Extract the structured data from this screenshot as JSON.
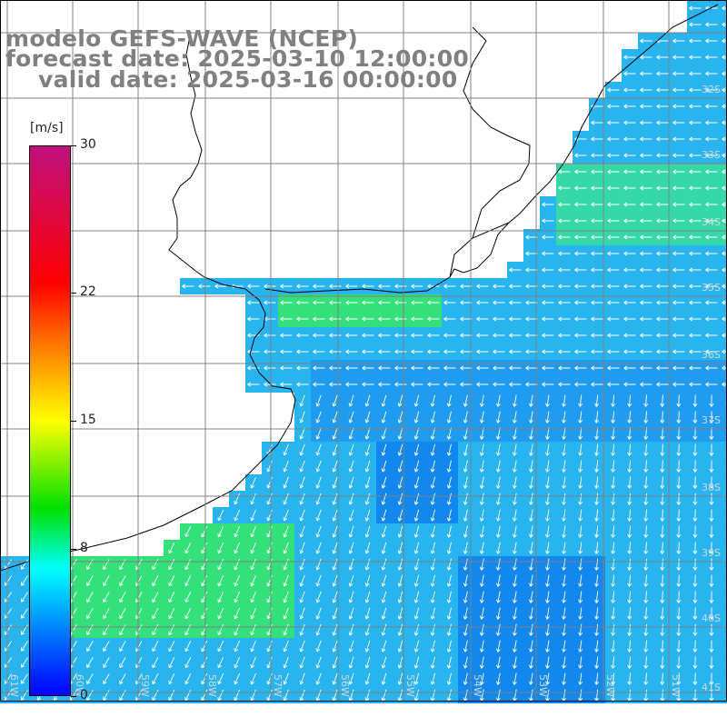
{
  "title": {
    "line1": "modelo GEFS-WAVE (NCEP)",
    "line2": "forecast date: 2025-03-10 12:00:00",
    "line3": "valid date: 2025-03-16 00:00:00"
  },
  "colorbar": {
    "units": "[m/s]",
    "ticks": [
      {
        "label": "30",
        "value": 30
      },
      {
        "label": "22",
        "value": 22
      },
      {
        "label": "15",
        "value": 15
      },
      {
        "label": "8",
        "value": 8
      },
      {
        "label": "0",
        "value": 0
      }
    ],
    "range": [
      0,
      30
    ],
    "colors": [
      "#0000ff",
      "#0080ff",
      "#00ffff",
      "#00e000",
      "#ffff00",
      "#ff8000",
      "#ff0000",
      "#c01080"
    ]
  },
  "map": {
    "lat_labels": [
      "32S",
      "33S",
      "34S",
      "35S",
      "36S",
      "37S",
      "38S",
      "39S",
      "40S",
      "41S"
    ],
    "lon_labels": [
      "61W",
      "60W",
      "59W",
      "58W",
      "57W",
      "56W",
      "55W",
      "54W",
      "53W",
      "52W",
      "51W"
    ],
    "land_color": "#ffffff",
    "ocean_base_color": "#29a9f0",
    "arrow_color": "#ffffff"
  }
}
